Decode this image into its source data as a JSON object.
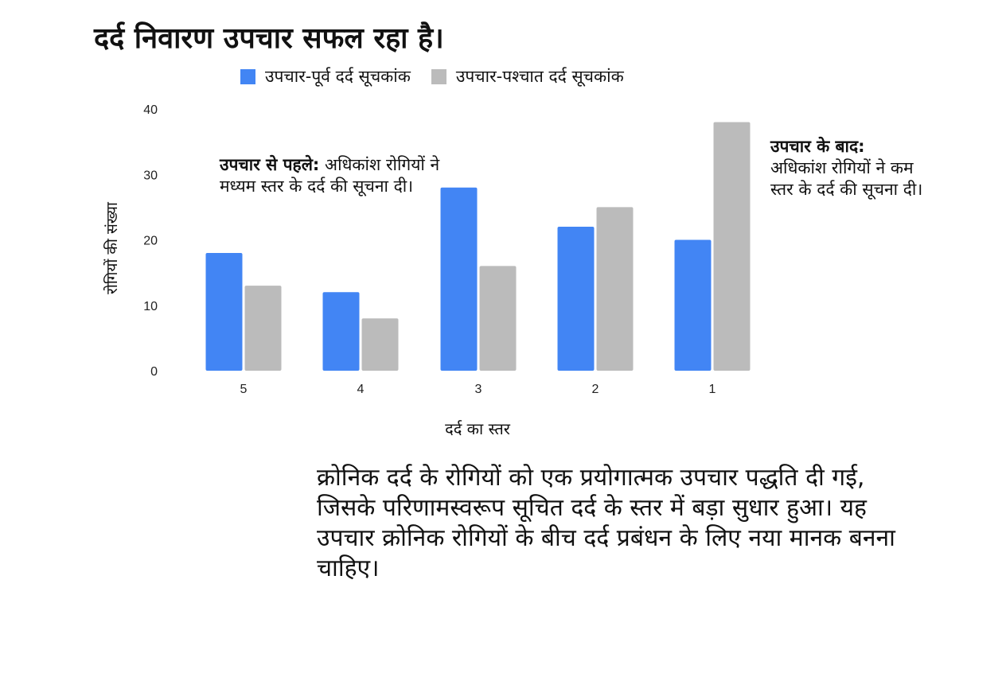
{
  "colors": {
    "pre": "#4285f4",
    "post": "#bbbbbb"
  },
  "chart_data": {
    "type": "bar",
    "title": "दर्द निवारण उपचार सफल रहा है।",
    "xlabel": "दर्द का स्तर",
    "ylabel": "रोगियों की संख्या",
    "categories": [
      "5",
      "4",
      "3",
      "2",
      "1"
    ],
    "series": [
      {
        "name": "उपचार-पूर्व दर्द सूचकांक",
        "values": [
          18,
          12,
          28,
          22,
          20
        ]
      },
      {
        "name": "उपचार-पश्चात दर्द सूचकांक",
        "values": [
          13,
          8,
          16,
          25,
          38
        ]
      }
    ],
    "ylim": [
      0,
      40
    ],
    "yticks": [
      "0",
      "10",
      "20",
      "30",
      "40"
    ],
    "grid": false,
    "legend": "top",
    "annotations": {
      "before_bold": "उपचार से पहले:",
      "before_text": " अधिकांश रोगियों ने मध्यम स्तर के दर्द की सूचना दी।",
      "after_bold": "उपचार के बाद:",
      "after_text": "अधिकांश रोगियों ने कम स्तर के दर्द की सूचना दी।"
    }
  },
  "footnote": "क्रोनिक दर्द के रोगियों को एक प्रयोगात्मक उपचार पद्धति दी गई, जिसके परिणामस्वरूप सूचित दर्द के स्तर में बड़ा सुधार हुआ। यह उपचार क्रोनिक रोगियों के बीच दर्द प्रबंधन के लिए नया मानक बनना चाहिए।"
}
